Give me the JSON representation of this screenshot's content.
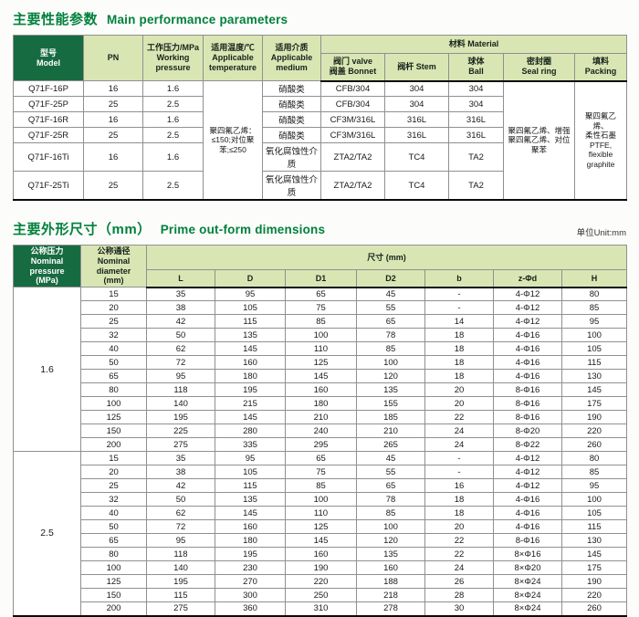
{
  "colors": {
    "accent_green": "#00813c",
    "header_dark_green": "#176b40",
    "header_light_green": "#d9e6b4"
  },
  "perf_section": {
    "title_zh": "主要性能参数",
    "title_en": "Main performance parameters",
    "headers": {
      "model": "型号\nModel",
      "pn": "PN",
      "pressure": "工作压力/MPa\nWorking\npressure",
      "temperature": "适用温度/℃\nApplicable\ntemperature",
      "medium": "适用介质\nApplicable\nmedium",
      "material": "材料 Material",
      "bonnet": "阀门 valve\n阀盖 Bonnet",
      "stem": "阀杆 Stem",
      "ball": "球体\nBall",
      "seal_ring": "密封圈\nSeal ring",
      "packing": "填料\nPacking"
    },
    "merged": {
      "temperature": "聚四氟乙烯：≤150;对位聚苯;≤250",
      "seal_ring": "聚四氟乙烯、增强聚四氟乙烯、对位聚苯",
      "packing": "聚四氟乙烯、\n柔性石墨\nPTFE,\nflexible graphite"
    },
    "rows": [
      {
        "model": "Q71F-16P",
        "pn": "16",
        "pressure": "1.6",
        "medium": "硝酸类",
        "bonnet": "CFB/304",
        "stem": "304",
        "ball": "304"
      },
      {
        "model": "Q71F-25P",
        "pn": "25",
        "pressure": "2.5",
        "medium": "硝酸类",
        "bonnet": "CFB/304",
        "stem": "304",
        "ball": "304"
      },
      {
        "model": "Q71F-16R",
        "pn": "16",
        "pressure": "1.6",
        "medium": "硝酸类",
        "bonnet": "CF3M/316L",
        "stem": "316L",
        "ball": "316L"
      },
      {
        "model": "Q71F-25R",
        "pn": "25",
        "pressure": "2.5",
        "medium": "硝酸类",
        "bonnet": "CF3M/316L",
        "stem": "316L",
        "ball": "316L"
      },
      {
        "model": "Q71F-16Ti",
        "pn": "16",
        "pressure": "1.6",
        "medium": "氧化腐蚀性介质",
        "bonnet": "ZTA2/TA2",
        "stem": "TC4",
        "ball": "TA2"
      },
      {
        "model": "Q71F-25Ti",
        "pn": "25",
        "pressure": "2.5",
        "medium": "氧化腐蚀性介质",
        "bonnet": "ZTA2/TA2",
        "stem": "TC4",
        "ball": "TA2"
      }
    ]
  },
  "dim_section": {
    "title_zh": "主要外形尺寸（mm）",
    "title_en": "Prime out-form dimensions",
    "unit_note": "单位Unit:mm",
    "headers": {
      "pressure": "公称压力\nNominal\npressure\n(MPa)",
      "diameter": "公称通径\nNominal\ndiameter\n(mm)",
      "size": "尺寸 (mm)",
      "cols": [
        "L",
        "D",
        "D1",
        "D2",
        "b",
        "z-Φd",
        "H"
      ]
    },
    "groups": [
      {
        "pressure": "1.6",
        "rows": [
          [
            "15",
            "35",
            "95",
            "65",
            "45",
            "-",
            "4-Φ12",
            "80"
          ],
          [
            "20",
            "38",
            "105",
            "75",
            "55",
            "-",
            "4-Φ12",
            "85"
          ],
          [
            "25",
            "42",
            "115",
            "85",
            "65",
            "14",
            "4-Φ12",
            "95"
          ],
          [
            "32",
            "50",
            "135",
            "100",
            "78",
            "18",
            "4-Φ16",
            "100"
          ],
          [
            "40",
            "62",
            "145",
            "110",
            "85",
            "18",
            "4-Φ16",
            "105"
          ],
          [
            "50",
            "72",
            "160",
            "125",
            "100",
            "18",
            "4-Φ16",
            "115"
          ],
          [
            "65",
            "95",
            "180",
            "145",
            "120",
            "18",
            "4-Φ16",
            "130"
          ],
          [
            "80",
            "118",
            "195",
            "160",
            "135",
            "20",
            "8-Φ16",
            "145"
          ],
          [
            "100",
            "140",
            "215",
            "180",
            "155",
            "20",
            "8-Φ16",
            "175"
          ],
          [
            "125",
            "195",
            "145",
            "210",
            "185",
            "22",
            "8-Φ16",
            "190"
          ],
          [
            "150",
            "225",
            "280",
            "240",
            "210",
            "24",
            "8-Φ20",
            "220"
          ],
          [
            "200",
            "275",
            "335",
            "295",
            "265",
            "24",
            "8-Φ22",
            "260"
          ]
        ]
      },
      {
        "pressure": "2.5",
        "rows": [
          [
            "15",
            "35",
            "95",
            "65",
            "45",
            "-",
            "4-Φ12",
            "80"
          ],
          [
            "20",
            "38",
            "105",
            "75",
            "55",
            "-",
            "4-Φ12",
            "85"
          ],
          [
            "25",
            "42",
            "115",
            "85",
            "65",
            "16",
            "4-Φ12",
            "95"
          ],
          [
            "32",
            "50",
            "135",
            "100",
            "78",
            "18",
            "4-Φ16",
            "100"
          ],
          [
            "40",
            "62",
            "145",
            "110",
            "85",
            "18",
            "4-Φ16",
            "105"
          ],
          [
            "50",
            "72",
            "160",
            "125",
            "100",
            "20",
            "4-Φ16",
            "115"
          ],
          [
            "65",
            "95",
            "180",
            "145",
            "120",
            "22",
            "8-Φ16",
            "130"
          ],
          [
            "80",
            "118",
            "195",
            "160",
            "135",
            "22",
            "8×Φ16",
            "145"
          ],
          [
            "100",
            "140",
            "230",
            "190",
            "160",
            "24",
            "8×Φ20",
            "175"
          ],
          [
            "125",
            "195",
            "270",
            "220",
            "188",
            "26",
            "8×Φ24",
            "190"
          ],
          [
            "150",
            "115",
            "300",
            "250",
            "218",
            "28",
            "8×Φ24",
            "220"
          ],
          [
            "200",
            "275",
            "360",
            "310",
            "278",
            "30",
            "8×Φ24",
            "260"
          ]
        ]
      }
    ]
  }
}
